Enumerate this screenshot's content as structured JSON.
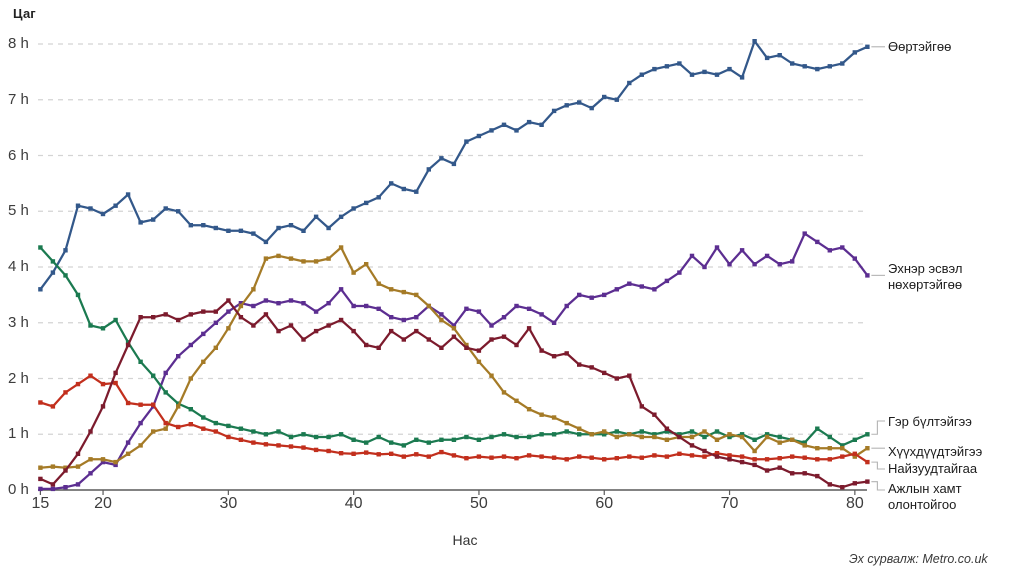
{
  "title": "Цаг",
  "x_axis": {
    "label": "Нас",
    "ticks": [
      15,
      20,
      30,
      40,
      50,
      60,
      70,
      80
    ]
  },
  "y_axis": {
    "tick_labels": [
      "0 h",
      "1 h",
      "2 h",
      "3 h",
      "4 h",
      "5 h",
      "6 h",
      "7 h",
      "8 h"
    ]
  },
  "source": "Эх сурвалж: Metro.co.uk",
  "chart_data": {
    "type": "line",
    "title": "Цаг",
    "xlabel": "Нас",
    "ylabel": "Цаг",
    "x_range": [
      15,
      81
    ],
    "ylim": [
      0,
      8
    ],
    "grid": "horizontal-dashed",
    "legend_position": "right-of-line-ends",
    "ages": [
      15,
      16,
      17,
      18,
      19,
      20,
      21,
      22,
      23,
      24,
      25,
      26,
      27,
      28,
      29,
      30,
      31,
      32,
      33,
      34,
      35,
      36,
      37,
      38,
      39,
      40,
      41,
      42,
      43,
      44,
      45,
      46,
      47,
      48,
      49,
      50,
      51,
      52,
      53,
      54,
      55,
      56,
      57,
      58,
      59,
      60,
      61,
      62,
      63,
      64,
      65,
      66,
      67,
      68,
      69,
      70,
      71,
      72,
      73,
      74,
      75,
      76,
      77,
      78,
      79,
      80,
      81
    ],
    "series": [
      {
        "name": "alone",
        "label": "Өөртэйгөө",
        "color": "#33588a",
        "values": [
          3.6,
          3.9,
          4.3,
          5.1,
          5.05,
          4.95,
          5.1,
          5.3,
          4.8,
          4.85,
          5.05,
          5.0,
          4.75,
          4.75,
          4.7,
          4.65,
          4.65,
          4.6,
          4.45,
          4.7,
          4.75,
          4.65,
          4.9,
          4.7,
          4.9,
          5.05,
          5.15,
          5.25,
          5.5,
          5.4,
          5.35,
          5.75,
          5.95,
          5.85,
          6.25,
          6.35,
          6.45,
          6.55,
          6.45,
          6.6,
          6.55,
          6.8,
          6.9,
          6.95,
          6.85,
          7.05,
          7.0,
          7.3,
          7.45,
          7.55,
          7.6,
          7.65,
          7.45,
          7.5,
          7.45,
          7.55,
          7.4,
          8.05,
          7.75,
          7.8,
          7.65,
          7.6,
          7.55,
          7.6,
          7.65,
          7.85,
          7.95
        ]
      },
      {
        "name": "spouse",
        "label": "Эхнэр эсвэл нөхөртэйгөө",
        "color": "#5c2e91",
        "values": [
          0.02,
          0.02,
          0.05,
          0.1,
          0.3,
          0.5,
          0.45,
          0.85,
          1.2,
          1.5,
          2.1,
          2.4,
          2.6,
          2.8,
          3.0,
          3.2,
          3.35,
          3.3,
          3.4,
          3.35,
          3.4,
          3.35,
          3.2,
          3.35,
          3.6,
          3.3,
          3.3,
          3.25,
          3.1,
          3.05,
          3.1,
          3.3,
          3.15,
          2.95,
          3.25,
          3.2,
          2.95,
          3.1,
          3.3,
          3.25,
          3.15,
          3.0,
          3.3,
          3.5,
          3.45,
          3.5,
          3.6,
          3.7,
          3.65,
          3.6,
          3.75,
          3.9,
          4.2,
          4.0,
          4.35,
          4.05,
          4.3,
          4.05,
          4.2,
          4.05,
          4.1,
          4.6,
          4.45,
          4.3,
          4.35,
          4.15,
          3.85
        ]
      },
      {
        "name": "family",
        "label": "Гэр бүлтэйгээ",
        "color": "#1b7a50",
        "values": [
          4.35,
          4.1,
          3.85,
          3.5,
          2.95,
          2.9,
          3.05,
          2.65,
          2.3,
          2.05,
          1.75,
          1.55,
          1.45,
          1.3,
          1.2,
          1.15,
          1.1,
          1.05,
          1.0,
          1.05,
          0.95,
          1.0,
          0.95,
          0.95,
          1.0,
          0.9,
          0.85,
          0.95,
          0.85,
          0.8,
          0.9,
          0.85,
          0.9,
          0.9,
          0.95,
          0.9,
          0.95,
          1.0,
          0.95,
          0.95,
          1.0,
          1.0,
          1.05,
          1.0,
          1.0,
          1.0,
          1.05,
          1.0,
          1.05,
          1.0,
          1.05,
          1.0,
          1.05,
          0.95,
          1.05,
          0.95,
          1.0,
          0.9,
          1.0,
          0.95,
          0.9,
          0.85,
          1.1,
          0.95,
          0.8,
          0.9,
          1.0
        ]
      },
      {
        "name": "children",
        "label": "Хүүхдүүдтэйгээ",
        "color": "#a57b27",
        "values": [
          0.4,
          0.42,
          0.4,
          0.42,
          0.55,
          0.55,
          0.5,
          0.65,
          0.8,
          1.05,
          1.1,
          1.5,
          2.0,
          2.3,
          2.55,
          2.9,
          3.3,
          3.6,
          4.15,
          4.2,
          4.15,
          4.1,
          4.1,
          4.15,
          4.35,
          3.9,
          4.05,
          3.7,
          3.6,
          3.55,
          3.5,
          3.3,
          3.05,
          2.9,
          2.6,
          2.3,
          2.05,
          1.75,
          1.6,
          1.45,
          1.35,
          1.3,
          1.2,
          1.1,
          1.0,
          1.05,
          0.95,
          1.0,
          0.95,
          0.95,
          0.9,
          0.95,
          0.95,
          1.05,
          0.9,
          1.0,
          0.95,
          0.7,
          0.95,
          0.85,
          0.9,
          0.8,
          0.75,
          0.75,
          0.75,
          0.6,
          0.75
        ]
      },
      {
        "name": "friends",
        "label": "Найзуудтайгаа",
        "color": "#c22f1d",
        "values": [
          1.57,
          1.5,
          1.75,
          1.9,
          2.05,
          1.9,
          1.92,
          1.56,
          1.53,
          1.53,
          1.2,
          1.13,
          1.18,
          1.1,
          1.05,
          0.95,
          0.9,
          0.85,
          0.82,
          0.8,
          0.78,
          0.76,
          0.72,
          0.7,
          0.66,
          0.65,
          0.67,
          0.64,
          0.65,
          0.6,
          0.64,
          0.6,
          0.68,
          0.62,
          0.57,
          0.6,
          0.58,
          0.6,
          0.57,
          0.62,
          0.6,
          0.58,
          0.55,
          0.6,
          0.58,
          0.55,
          0.57,
          0.6,
          0.58,
          0.62,
          0.6,
          0.65,
          0.62,
          0.6,
          0.66,
          0.62,
          0.6,
          0.55,
          0.55,
          0.57,
          0.6,
          0.58,
          0.55,
          0.55,
          0.6,
          0.65,
          0.5
        ]
      },
      {
        "name": "coworkers",
        "label": "Ажлын хамт олонтойгоо",
        "color": "#7c1b2d",
        "values": [
          0.2,
          0.1,
          0.35,
          0.65,
          1.05,
          1.5,
          2.1,
          2.6,
          3.1,
          3.1,
          3.15,
          3.05,
          3.15,
          3.2,
          3.2,
          3.4,
          3.1,
          2.95,
          3.15,
          2.85,
          2.95,
          2.7,
          2.85,
          2.95,
          3.05,
          2.85,
          2.6,
          2.55,
          2.85,
          2.7,
          2.85,
          2.7,
          2.55,
          2.75,
          2.55,
          2.5,
          2.7,
          2.75,
          2.6,
          2.9,
          2.5,
          2.4,
          2.45,
          2.25,
          2.2,
          2.1,
          2.0,
          2.05,
          1.5,
          1.35,
          1.1,
          0.95,
          0.8,
          0.7,
          0.6,
          0.55,
          0.5,
          0.45,
          0.35,
          0.4,
          0.3,
          0.3,
          0.25,
          0.1,
          0.05,
          0.12,
          0.15
        ]
      }
    ]
  }
}
